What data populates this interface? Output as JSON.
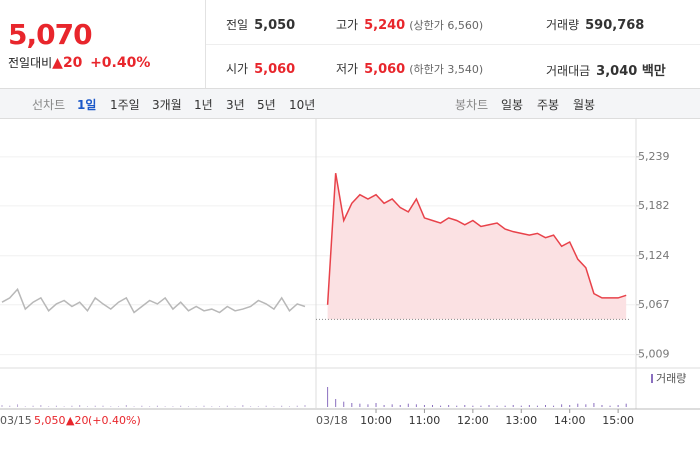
{
  "header": {
    "price": "5,070",
    "change_label": "전일대비",
    "change": "▲20",
    "change_rate": "+0.40%",
    "stats": [
      {
        "label": "전일",
        "value": "5,050"
      },
      {
        "label": "고가",
        "value": "5,240",
        "sub": "(상한가 6,560)"
      },
      {
        "label": "거래량",
        "value": "590,768"
      },
      {
        "label": "시가",
        "value": "5,060"
      },
      {
        "label": "저가",
        "value": "5,060",
        "sub": "(하한가 3,540)"
      },
      {
        "label": "거래대금",
        "value": "3,040 백만"
      }
    ]
  },
  "tabs": {
    "line_label": "선차트",
    "line": [
      "1일",
      "1주일",
      "3개월",
      "1년",
      "3년",
      "5년",
      "10년"
    ],
    "candle_label": "봉차트",
    "candle": [
      "일봉",
      "주봉",
      "월봉"
    ]
  },
  "footer": {
    "date": "03/15",
    "price": "5,050",
    "change": "▲20",
    "rate": "(+0.40%)"
  },
  "chart_data": {
    "type": "line",
    "ylim": [
      4997,
      5276
    ],
    "yticks": [
      {
        "value": 5009,
        "label": "5,009"
      },
      {
        "value": 5067,
        "label": "5,067"
      },
      {
        "value": 5124,
        "label": "5,124"
      },
      {
        "value": 5182,
        "label": "5,182"
      },
      {
        "value": 5239,
        "label": "5,239"
      }
    ],
    "reference": 5050,
    "prev_date": "03/15",
    "date": "03/18",
    "volume_label": "거래량",
    "xticks": [
      "10:00",
      "11:00",
      "12:00",
      "13:00",
      "14:00",
      "15:00"
    ],
    "series": [
      {
        "color": "#b8b8b8",
        "values": [
          5070,
          5075,
          5085,
          5062,
          5070,
          5075,
          5060,
          5068,
          5072,
          5065,
          5070,
          5060,
          5075,
          5068,
          5062,
          5070,
          5075,
          5058,
          5065,
          5072,
          5068,
          5075,
          5062,
          5070,
          5060,
          5065,
          5060,
          5062,
          5058,
          5065,
          5060,
          5062,
          5065,
          5072,
          5068,
          5062,
          5075,
          5060,
          5068,
          5065
        ],
        "volume": [
          3,
          2,
          4,
          1,
          2,
          3,
          1,
          2,
          1,
          2,
          3,
          1,
          2,
          2,
          1,
          1,
          3,
          1,
          2,
          1,
          2,
          1,
          1,
          2,
          1,
          1,
          2,
          1,
          1,
          2,
          1,
          3,
          1,
          1,
          2,
          1,
          2,
          1,
          2,
          3
        ]
      },
      {
        "color": "#e8424a",
        "fill": "#fbe1e3",
        "x": [
          "09:00",
          "09:10",
          "09:20",
          "09:30",
          "09:40",
          "09:50",
          "10:00",
          "10:10",
          "10:20",
          "10:30",
          "10:40",
          "10:50",
          "11:00",
          "11:10",
          "11:20",
          "11:30",
          "11:40",
          "11:50",
          "12:00",
          "12:10",
          "12:20",
          "12:30",
          "12:40",
          "12:50",
          "13:00",
          "13:10",
          "13:20",
          "13:30",
          "13:40",
          "13:50",
          "14:00",
          "14:10",
          "14:20",
          "14:30",
          "14:40",
          "14:50",
          "15:00",
          "15:10"
        ],
        "values": [
          5067,
          5220,
          5165,
          5185,
          5195,
          5190,
          5195,
          5185,
          5190,
          5180,
          5175,
          5190,
          5168,
          5165,
          5162,
          5168,
          5165,
          5160,
          5165,
          5158,
          5160,
          5162,
          5155,
          5152,
          5150,
          5148,
          5150,
          5145,
          5148,
          5135,
          5140,
          5120,
          5110,
          5080,
          5075,
          5075,
          5075,
          5078
        ],
        "volume": [
          30,
          12,
          8,
          6,
          5,
          4,
          6,
          3,
          4,
          3,
          5,
          4,
          3,
          3,
          2,
          3,
          2,
          3,
          2,
          2,
          3,
          2,
          2,
          3,
          2,
          3,
          2,
          3,
          2,
          4,
          3,
          5,
          4,
          6,
          3,
          2,
          3,
          5
        ]
      }
    ]
  }
}
